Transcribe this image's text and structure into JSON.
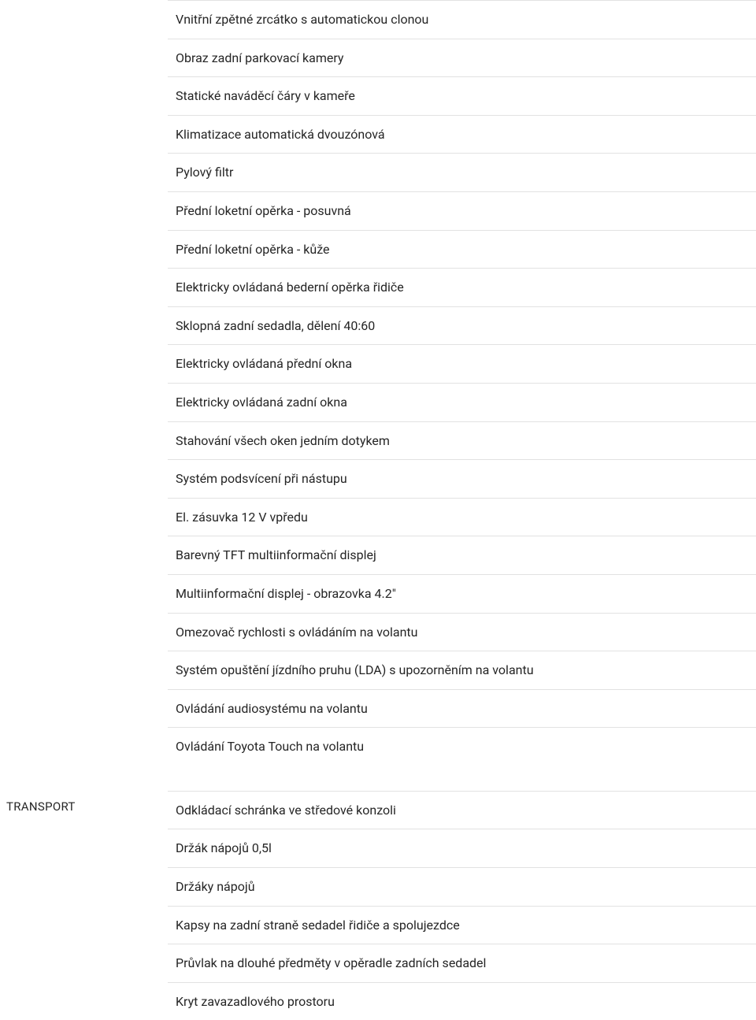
{
  "colors": {
    "background": "#ffffff",
    "text": "#252525",
    "divider": "#e2e2e2"
  },
  "typography": {
    "label_fontsize": 15,
    "item_fontsize": 16,
    "font_family": "-apple-system, sans-serif"
  },
  "layout": {
    "label_column_width": 213,
    "item_vertical_padding": 13
  },
  "sections": [
    {
      "label": "",
      "items": [
        "Vnitřní zpětné zrcátko s automatickou clonou",
        "Obraz zadní parkovací kamery",
        "Statické naváděcí čáry v kameře",
        "Klimatizace automatická dvouzónová",
        "Pylový filtr",
        "Přední loketní opěrka - posuvná",
        "Přední loketní opěrka - kůže",
        "Elektricky ovládaná bederní opěrka řidiče",
        "Sklopná zadní sedadla, dělení 40:60",
        "Elektricky ovládaná přední okna",
        "Elektricky ovládaná zadní okna",
        "Stahování všech oken jedním dotykem",
        "Systém podsvícení při nástupu",
        "El. zásuvka 12 V vpředu",
        "Barevný TFT multiinformační displej",
        "Multiinformační displej - obrazovka 4.2\"",
        "Omezovač rychlosti s ovládáním na volantu",
        "Systém opuštění jízdního pruhu (LDA) s upozorněním na volantu",
        "Ovládání audiosystému na volantu",
        "Ovládání Toyota Touch na volantu"
      ]
    },
    {
      "label": "TRANSPORT",
      "items": [
        "Odkládací schránka ve středové konzoli",
        "Držák nápojů 0,5l",
        "Držáky nápojů",
        "Kapsy na zadní straně sedadel řidiče a spolujezdce",
        "Průvlak na dlouhé předměty v opěradle zadních sedadel",
        "Kryt zavazadlového prostoru"
      ]
    }
  ]
}
